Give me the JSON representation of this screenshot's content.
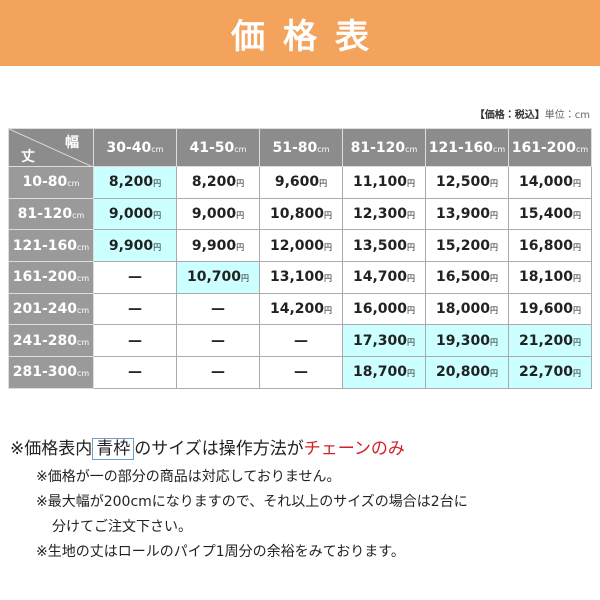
{
  "header": {
    "title": "価格表"
  },
  "unit_note": {
    "tax": "【価格：税込】",
    "unit": "単位：cm"
  },
  "table": {
    "corner": {
      "length": "丈",
      "width": "幅"
    },
    "columns": [
      {
        "range": "30-40",
        "unit": "cm"
      },
      {
        "range": "41-50",
        "unit": "cm"
      },
      {
        "range": "51-80",
        "unit": "cm"
      },
      {
        "range": "81-120",
        "unit": "cm"
      },
      {
        "range": "121-160",
        "unit": "cm"
      },
      {
        "range": "161-200",
        "unit": "cm"
      }
    ],
    "rows": [
      {
        "label": {
          "range": "10-80",
          "unit": "cm"
        },
        "cells": [
          {
            "price": "8,200",
            "unit": "円",
            "highlight": true
          },
          {
            "price": "8,200",
            "unit": "円"
          },
          {
            "price": "9,600",
            "unit": "円"
          },
          {
            "price": "11,100",
            "unit": "円"
          },
          {
            "price": "12,500",
            "unit": "円"
          },
          {
            "price": "14,000",
            "unit": "円"
          }
        ]
      },
      {
        "label": {
          "range": "81-120",
          "unit": "cm"
        },
        "cells": [
          {
            "price": "9,000",
            "unit": "円",
            "highlight": true
          },
          {
            "price": "9,000",
            "unit": "円"
          },
          {
            "price": "10,800",
            "unit": "円"
          },
          {
            "price": "12,300",
            "unit": "円"
          },
          {
            "price": "13,900",
            "unit": "円"
          },
          {
            "price": "15,400",
            "unit": "円"
          }
        ]
      },
      {
        "label": {
          "range": "121-160",
          "unit": "cm"
        },
        "cells": [
          {
            "price": "9,900",
            "unit": "円",
            "highlight": true
          },
          {
            "price": "9,900",
            "unit": "円"
          },
          {
            "price": "12,000",
            "unit": "円"
          },
          {
            "price": "13,500",
            "unit": "円"
          },
          {
            "price": "15,200",
            "unit": "円"
          },
          {
            "price": "16,800",
            "unit": "円"
          }
        ]
      },
      {
        "label": {
          "range": "161-200",
          "unit": "cm"
        },
        "cells": [
          {
            "price": "—"
          },
          {
            "price": "10,700",
            "unit": "円",
            "highlight": true
          },
          {
            "price": "13,100",
            "unit": "円"
          },
          {
            "price": "14,700",
            "unit": "円"
          },
          {
            "price": "16,500",
            "unit": "円"
          },
          {
            "price": "18,100",
            "unit": "円"
          }
        ]
      },
      {
        "label": {
          "range": "201-240",
          "unit": "cm"
        },
        "cells": [
          {
            "price": "—"
          },
          {
            "price": "—"
          },
          {
            "price": "14,200",
            "unit": "円"
          },
          {
            "price": "16,000",
            "unit": "円"
          },
          {
            "price": "18,000",
            "unit": "円"
          },
          {
            "price": "19,600",
            "unit": "円"
          }
        ]
      },
      {
        "label": {
          "range": "241-280",
          "unit": "cm"
        },
        "cells": [
          {
            "price": "—"
          },
          {
            "price": "—"
          },
          {
            "price": "—"
          },
          {
            "price": "17,300",
            "unit": "円",
            "highlight": true
          },
          {
            "price": "19,300",
            "unit": "円",
            "highlight": true
          },
          {
            "price": "21,200",
            "unit": "円",
            "highlight": true
          }
        ]
      },
      {
        "label": {
          "range": "281-300",
          "unit": "cm"
        },
        "cells": [
          {
            "price": "—"
          },
          {
            "price": "—"
          },
          {
            "price": "—"
          },
          {
            "price": "18,700",
            "unit": "円",
            "highlight": true
          },
          {
            "price": "20,800",
            "unit": "円",
            "highlight": true
          },
          {
            "price": "22,700",
            "unit": "円",
            "highlight": true
          }
        ]
      }
    ]
  },
  "notes": {
    "main": [
      "※価格表内",
      "青枠",
      "のサイズは操作方法が",
      "チェーンのみ"
    ],
    "lines": [
      "※価格が一の部分の商品は対応しておりません。",
      "※最大幅が200cmになりますので、それ以上のサイズの場合は2台に",
      "分けてご注文下さい。",
      "※生地の丈はロールのパイプ1周分の余裕をみております。"
    ]
  }
}
